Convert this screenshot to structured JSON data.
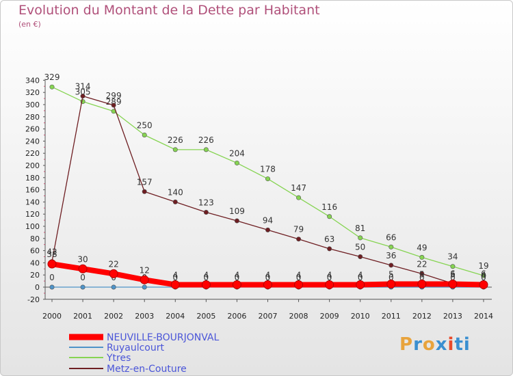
{
  "title": "Evolution du Montant de la Dette par Habitant",
  "unit": "(en €)",
  "logo": {
    "text": "Proxiti",
    "colors": [
      "#e8a33c",
      "#3a8fd0",
      "#e8a33c",
      "#3a8fd0",
      "#e84a2a",
      "#3a8fd0",
      "#3a8fd0"
    ]
  },
  "chart_data": {
    "type": "line",
    "title": "Evolution du Montant de la Dette par Habitant",
    "ylabel": "(en €)",
    "xlabel": "",
    "ylim": [
      -20,
      340
    ],
    "yticks": [
      -20,
      0,
      20,
      40,
      60,
      80,
      100,
      120,
      140,
      160,
      180,
      200,
      220,
      240,
      260,
      280,
      300,
      320,
      340
    ],
    "categories": [
      "2000",
      "2001",
      "2002",
      "2003",
      "2004",
      "2005",
      "2006",
      "2007",
      "2008",
      "2009",
      "2010",
      "2011",
      "2012",
      "2013",
      "2014"
    ],
    "grid": false,
    "legend": "bottom-left",
    "series": [
      {
        "name": "NEUVILLE-BOURJONVAL",
        "color": "#ff0000",
        "values": [
          38,
          30,
          22,
          12,
          4,
          4,
          4,
          4,
          4,
          4,
          4,
          5,
          5,
          5,
          4
        ],
        "labels": [
          "38",
          "30",
          "22",
          "12",
          "4",
          "4",
          "4",
          "4",
          "4",
          "4",
          "4",
          "5",
          "5",
          "5",
          "4"
        ]
      },
      {
        "name": "Ruyaulcourt",
        "color": "#4e93c8",
        "values": [
          0,
          0,
          0,
          0,
          0,
          0,
          0,
          0,
          0,
          0,
          0,
          0,
          0,
          0,
          0
        ],
        "labels": [
          "0",
          "0",
          "0",
          "0",
          "0",
          "0",
          "0",
          "0",
          "0",
          "0",
          "0",
          "0",
          "0",
          "0",
          "0"
        ]
      },
      {
        "name": "Ytres",
        "color": "#86d452",
        "values": [
          329,
          305,
          289,
          250,
          226,
          226,
          204,
          178,
          147,
          116,
          81,
          66,
          49,
          34,
          19
        ],
        "labels": [
          "329",
          "305",
          "289",
          "250",
          "226",
          "226",
          "204",
          "178",
          "147",
          "116",
          "81",
          "66",
          "49",
          "34",
          "19"
        ]
      },
      {
        "name": "Metz-en-Couture",
        "color": "#6e1e22",
        "values": [
          42,
          314,
          299,
          157,
          140,
          123,
          109,
          94,
          79,
          63,
          50,
          36,
          22,
          6,
          6
        ],
        "labels": [
          "42",
          "314",
          "299",
          "157",
          "140",
          "123",
          "109",
          "94",
          "79",
          "63",
          "50",
          "36",
          "22",
          "6",
          "6"
        ]
      }
    ]
  }
}
